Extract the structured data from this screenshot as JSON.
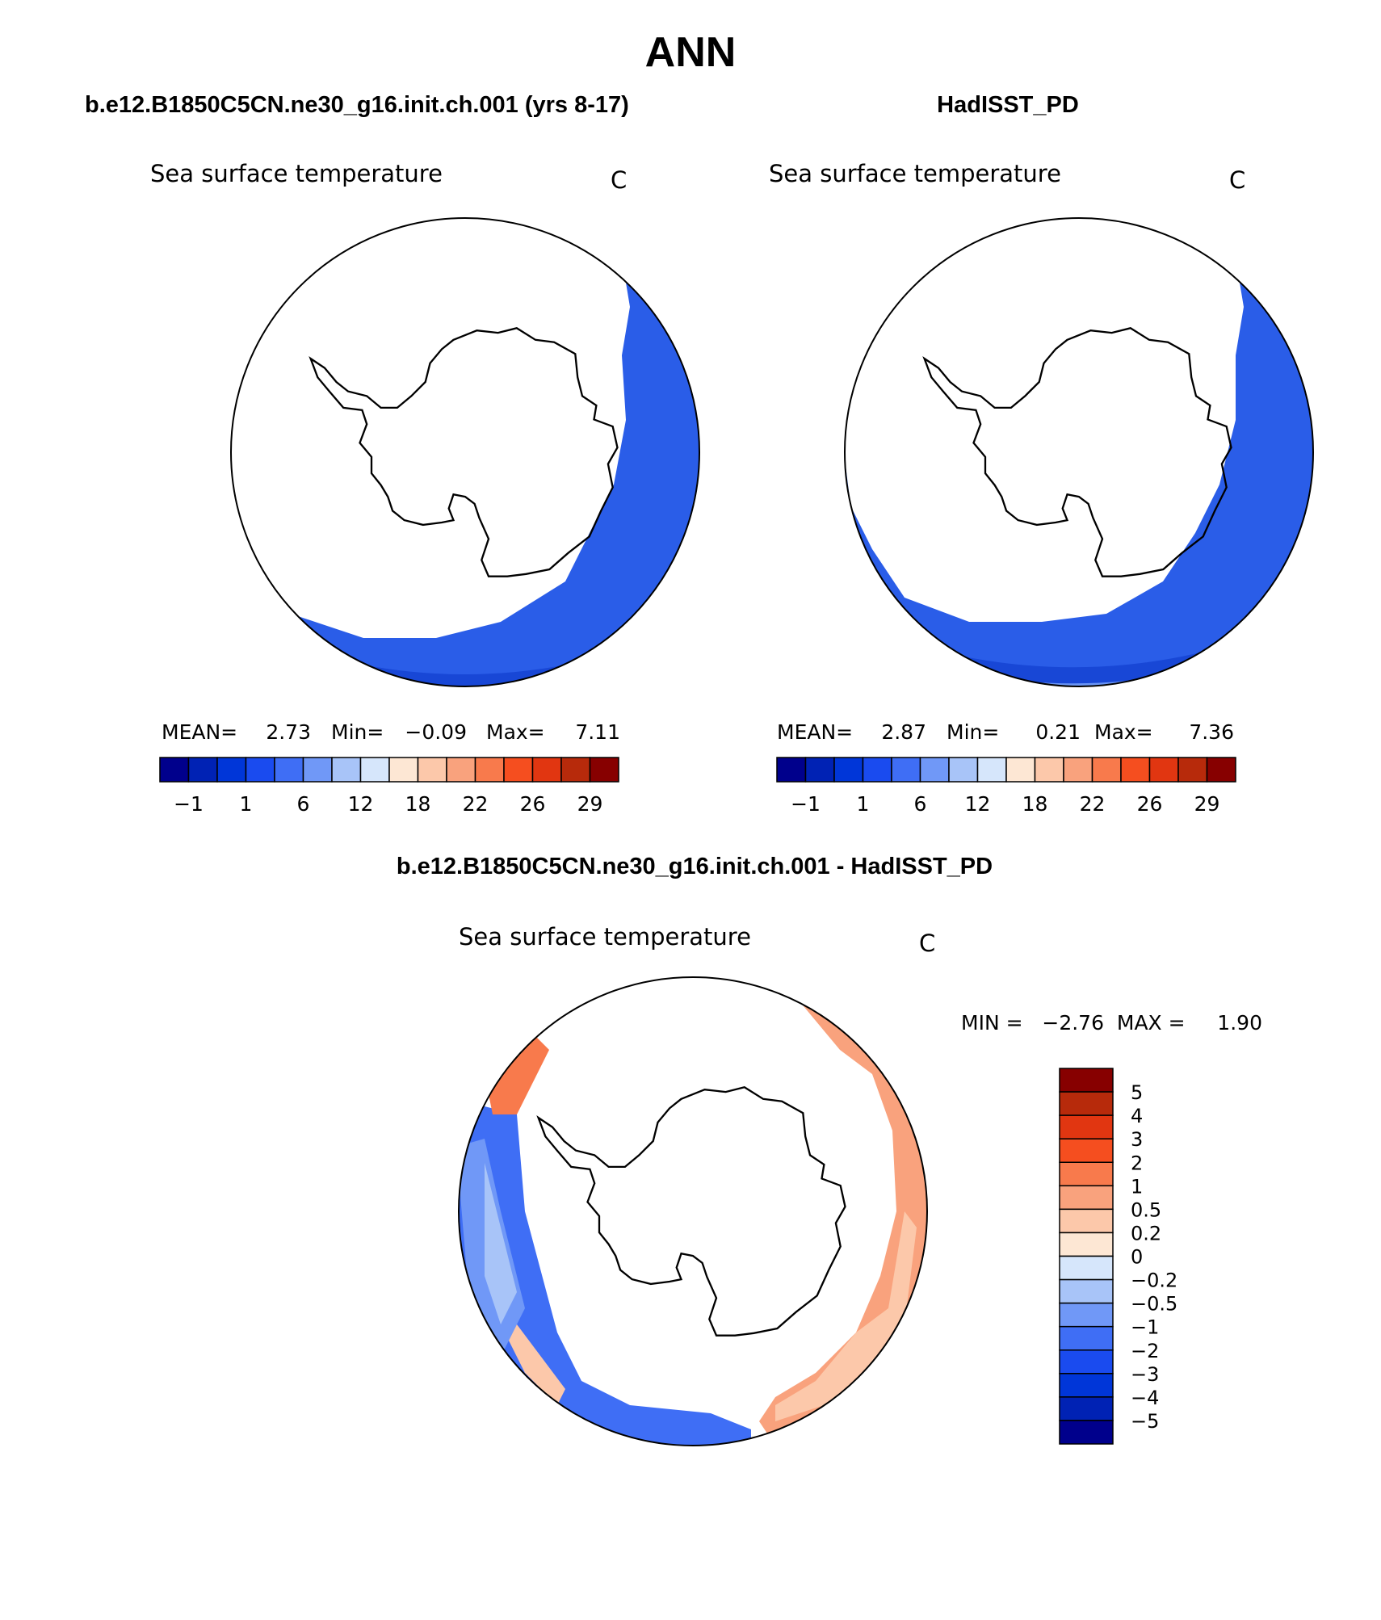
{
  "page": {
    "season": "ANN"
  },
  "panels": {
    "left": {
      "case_title": "b.e12.B1850C5CN.ne30_g16.init.ch.001 (yrs 8-17)",
      "variable": "Sea surface temperature",
      "units": "C",
      "stats": {
        "mean_label": "MEAN=",
        "mean": "2.73",
        "min_label": "Min=",
        "min": "−0.09",
        "max_label": "Max=",
        "max": "7.11"
      }
    },
    "right": {
      "case_title": "HadISST_PD",
      "variable": "Sea surface temperature",
      "units": "C",
      "stats": {
        "mean_label": "MEAN=",
        "mean": "2.87",
        "min_label": "Min=",
        "min": "0.21",
        "max_label": "Max=",
        "max": "7.36"
      }
    },
    "diff": {
      "case_title": "b.e12.B1850C5CN.ne30_g16.init.ch.001 - HadISST_PD",
      "variable": "Sea surface temperature",
      "units": "C",
      "minmax": "MIN =   −2.76  MAX =     1.90"
    }
  },
  "colorbar_main": {
    "colors": [
      "#00008c",
      "#0022b4",
      "#0036d8",
      "#1a4bef",
      "#3f6ef5",
      "#7098f7",
      "#a8c4f8",
      "#d6e6fb",
      "#fde7d4",
      "#fcc8aa",
      "#f9a27d",
      "#f87a4c",
      "#f54e1f",
      "#e13611",
      "#b72a0b",
      "#870000"
    ],
    "labels": [
      "−1",
      "1",
      "6",
      "12",
      "18",
      "22",
      "26",
      "29"
    ]
  },
  "colorbar_diff": {
    "colors": [
      "#870000",
      "#b72a0b",
      "#e13611",
      "#f54e1f",
      "#f87a4c",
      "#f9a27d",
      "#fcc8aa",
      "#fde7d4",
      "#d6e6fb",
      "#a8c4f8",
      "#7098f7",
      "#3f6ef5",
      "#1a4bef",
      "#0036d8",
      "#0022b4",
      "#00008c"
    ],
    "labels": [
      "5",
      "4",
      "3",
      "2",
      "1",
      "0.5",
      "0.2",
      "0",
      "−0.2",
      "−0.5",
      "−1",
      "−2",
      "−3",
      "−4",
      "−5"
    ]
  }
}
